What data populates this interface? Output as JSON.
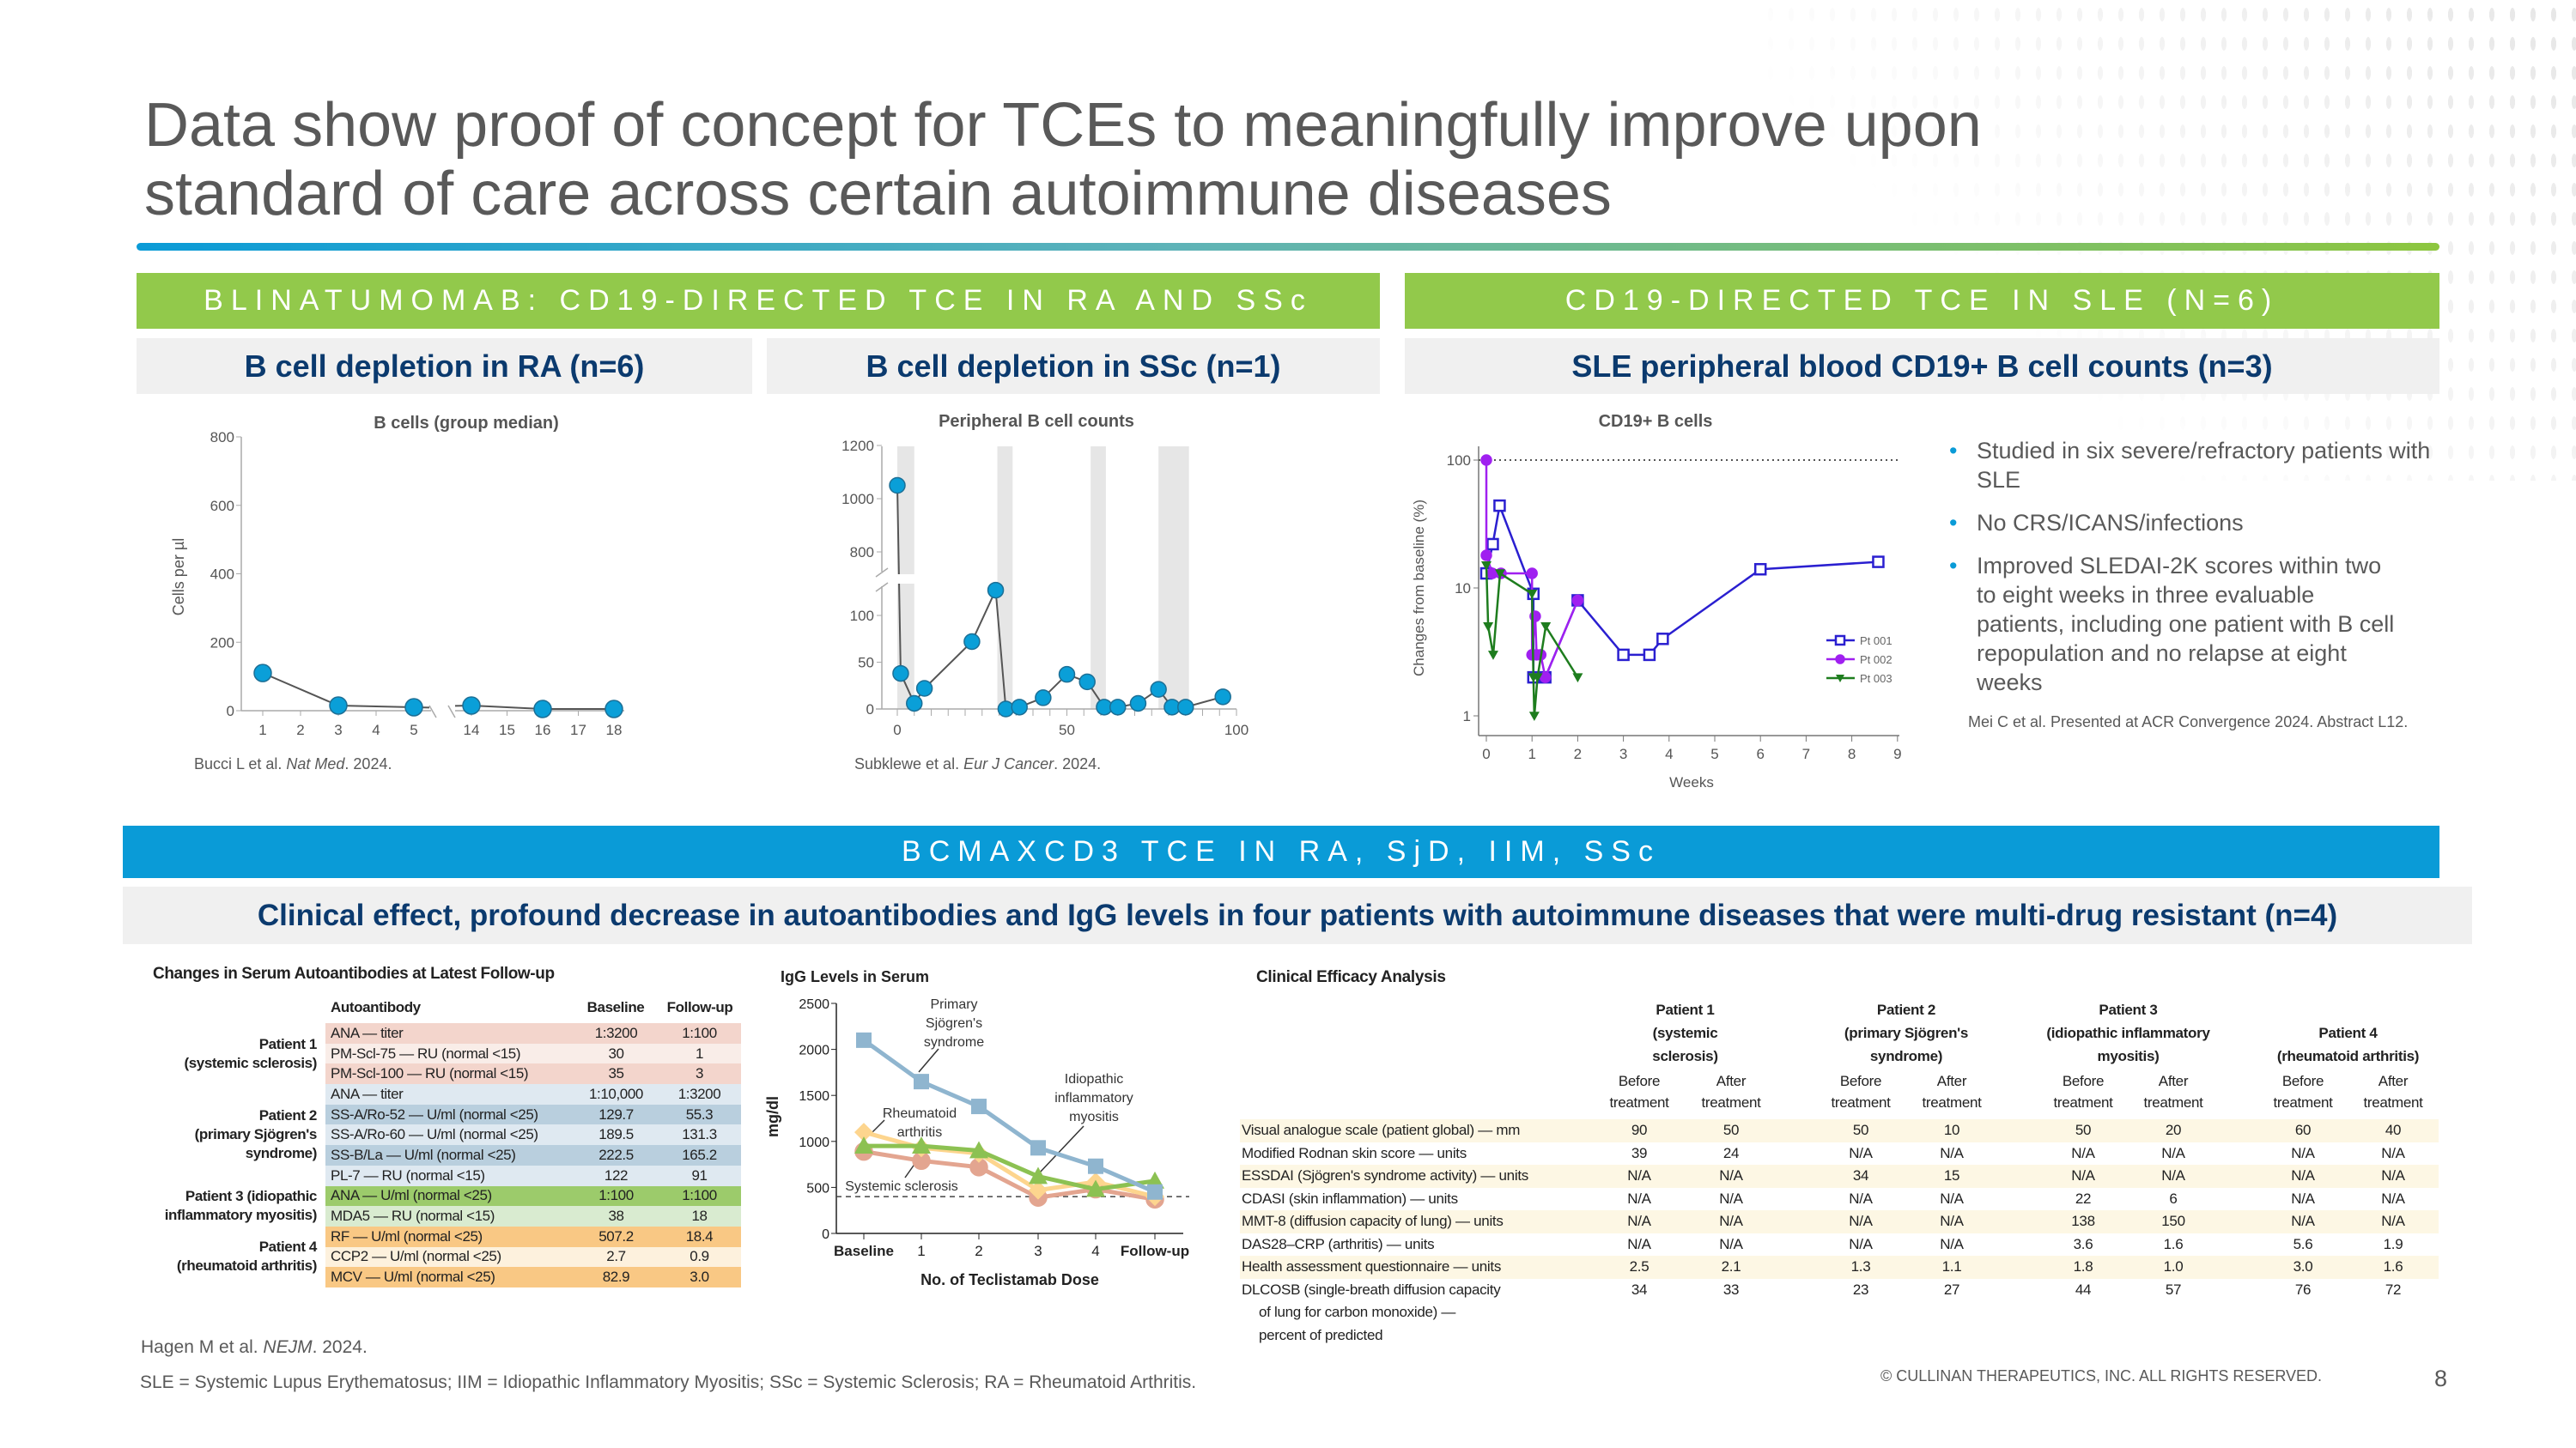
{
  "title": {
    "line1": "Data show proof of concept for TCEs to meaningfully improve upon",
    "line2": "standard of care across certain autoimmune diseases"
  },
  "colors": {
    "green": "#92c94b",
    "blue": "#0a9bd7",
    "navy": "#0b3a6e",
    "gray_panel": "#f0f0f0"
  },
  "section_blina": {
    "header": "BLINATUMOMAB: CD19-DIRECTED TCE IN RA AND SSc",
    "sub_ra": "B cell depletion in RA (n=6)",
    "sub_ssc": "B cell depletion in SSc (n=1)",
    "cite_ra_prefix": "Bucci L et al. ",
    "cite_ra_journal": "Nat Med",
    "cite_ra_suffix": ". 2024.",
    "cite_ssc_prefix": "Subklewe et al. ",
    "cite_ssc_journal": "Eur J Cancer",
    "cite_ssc_suffix": ". 2024."
  },
  "section_sle": {
    "header": "CD19-DIRECTED TCE IN SLE (N=6)",
    "sub": "SLE peripheral blood CD19+ B cell counts (n=3)",
    "bullets": [
      "Studied in six severe/refractory patients with SLE",
      "No CRS/ICANS/infections",
      "Improved SLEDAI-2K scores within two to eight weeks in three evaluable patients, including one patient with B cell repopulation and no relapse at eight weeks"
    ],
    "cite": "Mei C et al. Presented at ACR Convergence 2024. Abstract L12."
  },
  "section_bcma": {
    "header": "BCMAXCD3 TCE IN RA, SjD, IIM, SSc",
    "sub": "Clinical effect, profound decrease in autoantibodies and IgG levels in four patients with autoimmune diseases that were multi-drug resistant (n=4)",
    "cite_prefix": "Hagen M et al. ",
    "cite_journal": "NEJM",
    "cite_suffix": ". 2024."
  },
  "chart_data": [
    {
      "type": "line",
      "title": "B cells (group median)",
      "ylabel": "Cells per µl",
      "ylim": [
        0,
        800
      ],
      "yticks": [
        0,
        200,
        400,
        600,
        800
      ],
      "xticks": [
        1,
        2,
        3,
        4,
        5,
        14,
        15,
        16,
        17,
        18
      ],
      "x_axis_break": [
        5,
        14
      ],
      "marker_color": "#0a9fd8",
      "x": [
        1,
        3,
        5,
        14,
        16,
        18
      ],
      "y": [
        110,
        15,
        10,
        15,
        5,
        5
      ]
    },
    {
      "type": "line",
      "title": "Peripheral B cell counts",
      "yticks": [
        0,
        50,
        100,
        800,
        1000,
        1200
      ],
      "y_axis_break": [
        135,
        720
      ],
      "xlim": [
        0,
        100
      ],
      "xticks": [
        0,
        50,
        100
      ],
      "marker_color": "#0a9fd8",
      "shaded_x_ranges": [
        [
          0,
          5
        ],
        [
          29.5,
          34
        ],
        [
          57,
          61.5
        ],
        [
          77,
          86
        ]
      ],
      "x": [
        0,
        1,
        5,
        8,
        22,
        29,
        32,
        36,
        43,
        50,
        56,
        61,
        65,
        71,
        77,
        81,
        85,
        96
      ],
      "y": [
        1050,
        38,
        6,
        22,
        72,
        127,
        0,
        2,
        12,
        37,
        29,
        2,
        2,
        6,
        21,
        2,
        2,
        13
      ]
    },
    {
      "type": "line",
      "title": "CD19+ B cells",
      "xlabel": "Weeks",
      "ylabel": "Changes from baseline (%)",
      "yscale": "log",
      "ylim": [
        1,
        100
      ],
      "yticks": [
        1,
        10,
        100
      ],
      "xlim": [
        0,
        9
      ],
      "xticks": [
        0,
        1,
        2,
        3,
        4,
        5,
        6,
        7,
        8,
        9
      ],
      "reference_line": 100,
      "legend": "right",
      "series": [
        {
          "name": "Pt 001",
          "color": "#2a1fd0",
          "marker": "open-square",
          "x": [
            0,
            0.14,
            0.29,
            1.03,
            1.03,
            1.29,
            2,
            3,
            3.57,
            3.86,
            6,
            8.58
          ],
          "y": [
            13,
            22,
            44,
            9,
            2,
            2,
            8,
            3,
            3,
            4,
            14,
            16
          ]
        },
        {
          "name": "Pt 002",
          "color": "#a020f0",
          "marker": "circle",
          "x": [
            0,
            0,
            0.13,
            0.32,
            1,
            1,
            1.07,
            1.1,
            1.19,
            1.29,
            2
          ],
          "y": [
            100,
            18,
            13,
            13,
            13,
            3,
            6,
            3,
            3,
            2,
            8
          ]
        },
        {
          "name": "Pt 003",
          "color": "#1e7d1e",
          "marker": "triangle-down",
          "x": [
            0,
            0.04,
            0.15,
            0.3,
            1,
            1.03,
            1.05,
            1.12,
            1.3,
            2
          ],
          "y": [
            15,
            5,
            3,
            13,
            9,
            2,
            1,
            2,
            5,
            2
          ]
        }
      ]
    },
    {
      "type": "line",
      "title": "IgG Levels in Serum",
      "xlabel": "No. of Teclistamab Dose",
      "ylabel": "mg/dl",
      "ylim": [
        0,
        2500
      ],
      "yticks": [
        0,
        500,
        1000,
        1500,
        2000,
        2500
      ],
      "categories": [
        "Baseline",
        "1",
        "2",
        "3",
        "4",
        "Follow-up"
      ],
      "reference_line": 400,
      "series": [
        {
          "name": "Systemic sclerosis",
          "color": "#e3a590",
          "marker": "circle",
          "values": [
            890,
            790,
            720,
            390,
            480,
            370
          ]
        },
        {
          "name": "Rheumatoid arthritis",
          "color": "#fdd58e",
          "marker": "diamond",
          "values": [
            1100,
            930,
            870,
            470,
            560,
            400
          ]
        },
        {
          "name": "Idiopathic inflammatory myositis",
          "color": "#8cc152",
          "marker": "triangle",
          "values": [
            950,
            950,
            900,
            620,
            480,
            570
          ]
        },
        {
          "name": "Primary Sjögren's syndrome",
          "color": "#8fb5cf",
          "marker": "square",
          "values": [
            2100,
            1650,
            1380,
            930,
            730,
            450
          ]
        }
      ],
      "annotations": {
        "sjogren": [
          "Primary",
          "Sjögren's",
          "syndrome"
        ],
        "ra": [
          "Rheumatoid",
          "arthritis"
        ],
        "iim": [
          "Idiopathic",
          "inflammatory",
          "myositis"
        ],
        "ssc": "Systemic sclerosis"
      }
    }
  ],
  "autoantibody_table": {
    "title": "Changes in Serum Autoantibodies at Latest Follow-up",
    "headers": [
      "Autoantibody",
      "Baseline",
      "Follow-up"
    ],
    "groups": [
      {
        "label": [
          "Patient 1",
          "(systemic sclerosis)"
        ],
        "rows": [
          {
            "name": "ANA — titer",
            "baseline": "1:3200",
            "followup": "1:100",
            "color": "#f3d5cc"
          },
          {
            "name": "PM-Scl-75 — RU (normal <15)",
            "baseline": "30",
            "followup": "1",
            "color": "#f9ede8"
          },
          {
            "name": "PM-Scl-100 — RU (normal <15)",
            "baseline": "35",
            "followup": "3",
            "color": "#f3d5cc"
          }
        ]
      },
      {
        "label": [
          "Patient 2",
          "(primary Sjögren's",
          "syndrome)"
        ],
        "rows": [
          {
            "name": "ANA — titer",
            "baseline": "1:10,000",
            "followup": "1:3200",
            "color": "#dfe9f1"
          },
          {
            "name": "SS-A/Ro-52 — U/ml (normal <25)",
            "baseline": "129.7",
            "followup": "55.3",
            "color": "#b9cfde"
          },
          {
            "name": "SS-A/Ro-60 — U/ml (normal <25)",
            "baseline": "189.5",
            "followup": "131.3",
            "color": "#dfe9f1"
          },
          {
            "name": "SS-B/La — U/ml (normal <25)",
            "baseline": "222.5",
            "followup": "165.2",
            "color": "#b9cfde"
          },
          {
            "name": "PL-7 — RU (normal <15)",
            "baseline": "122",
            "followup": "91",
            "color": "#dfe9f1"
          }
        ]
      },
      {
        "label": [
          "Patient 3 (idiopathic",
          "inflammatory myositis)"
        ],
        "rows": [
          {
            "name": "ANA — U/ml (normal <25)",
            "baseline": "1:100",
            "followup": "1:100",
            "color": "#9ccb6b"
          },
          {
            "name": "MDA5 — RU (normal <15)",
            "baseline": "38",
            "followup": "18",
            "color": "#d9ebd0"
          }
        ]
      },
      {
        "label": [
          "Patient 4",
          "(rheumatoid arthritis)"
        ],
        "rows": [
          {
            "name": "RF — U/ml (normal <25)",
            "baseline": "507.2",
            "followup": "18.4",
            "color": "#f9c884"
          },
          {
            "name": "CCP2 — U/ml (normal <25)",
            "baseline": "2.7",
            "followup": "0.9",
            "color": "#fdf1dd"
          },
          {
            "name": "MCV — U/ml (normal <25)",
            "baseline": "82.9",
            "followup": "3.0",
            "color": "#f9c884"
          }
        ]
      }
    ]
  },
  "efficacy_table": {
    "title": "Clinical Efficacy Analysis",
    "patients": [
      [
        "Patient 1",
        "(systemic",
        "sclerosis)"
      ],
      [
        "Patient 2",
        "(primary Sjögren's",
        "syndrome)"
      ],
      [
        "Patient 3",
        "(idiopathic inflammatory",
        "myositis)"
      ],
      [
        "Patient 4",
        "(rheumatoid arthritis)"
      ]
    ],
    "before_label": [
      "Before",
      "treatment"
    ],
    "after_label": [
      "After",
      "treatment"
    ],
    "rows": [
      {
        "label": [
          "Visual analogue scale (patient global) — mm"
        ],
        "values": [
          "90",
          "50",
          "50",
          "10",
          "50",
          "20",
          "60",
          "40"
        ]
      },
      {
        "label": [
          "Modified Rodnan skin score — units"
        ],
        "values": [
          "39",
          "24",
          "N/A",
          "N/A",
          "N/A",
          "N/A",
          "N/A",
          "N/A"
        ]
      },
      {
        "label": [
          "ESSDAI (Sjögren's syndrome activity) — units"
        ],
        "values": [
          "N/A",
          "N/A",
          "34",
          "15",
          "N/A",
          "N/A",
          "N/A",
          "N/A"
        ]
      },
      {
        "label": [
          "CDASI (skin inflammation) — units"
        ],
        "values": [
          "N/A",
          "N/A",
          "N/A",
          "N/A",
          "22",
          "6",
          "N/A",
          "N/A"
        ]
      },
      {
        "label": [
          "MMT-8 (diffusion capacity of lung) — units"
        ],
        "values": [
          "N/A",
          "N/A",
          "N/A",
          "N/A",
          "138",
          "150",
          "N/A",
          "N/A"
        ]
      },
      {
        "label": [
          "DAS28–CRP (arthritis) — units"
        ],
        "values": [
          "N/A",
          "N/A",
          "N/A",
          "N/A",
          "3.6",
          "1.6",
          "5.6",
          "1.9"
        ]
      },
      {
        "label": [
          "Health assessment questionnaire — units"
        ],
        "values": [
          "2.5",
          "2.1",
          "1.3",
          "1.1",
          "1.8",
          "1.0",
          "3.0",
          "1.6"
        ]
      },
      {
        "label": [
          "DLCOSB (single-breath diffusion capacity",
          "of lung for carbon monoxide) —",
          "percent of predicted"
        ],
        "values": [
          "34",
          "33",
          "23",
          "27",
          "44",
          "57",
          "76",
          "72"
        ]
      }
    ]
  },
  "footer": {
    "abbreviations": "SLE = Systemic Lupus Erythematosus; IIM = Idiopathic Inflammatory Myositis; SSc = Systemic Sclerosis; RA = Rheumatoid Arthritis.",
    "copyright": "© CULLINAN THERAPEUTICS, INC. ALL RIGHTS RESERVED.",
    "page_number": "8"
  }
}
